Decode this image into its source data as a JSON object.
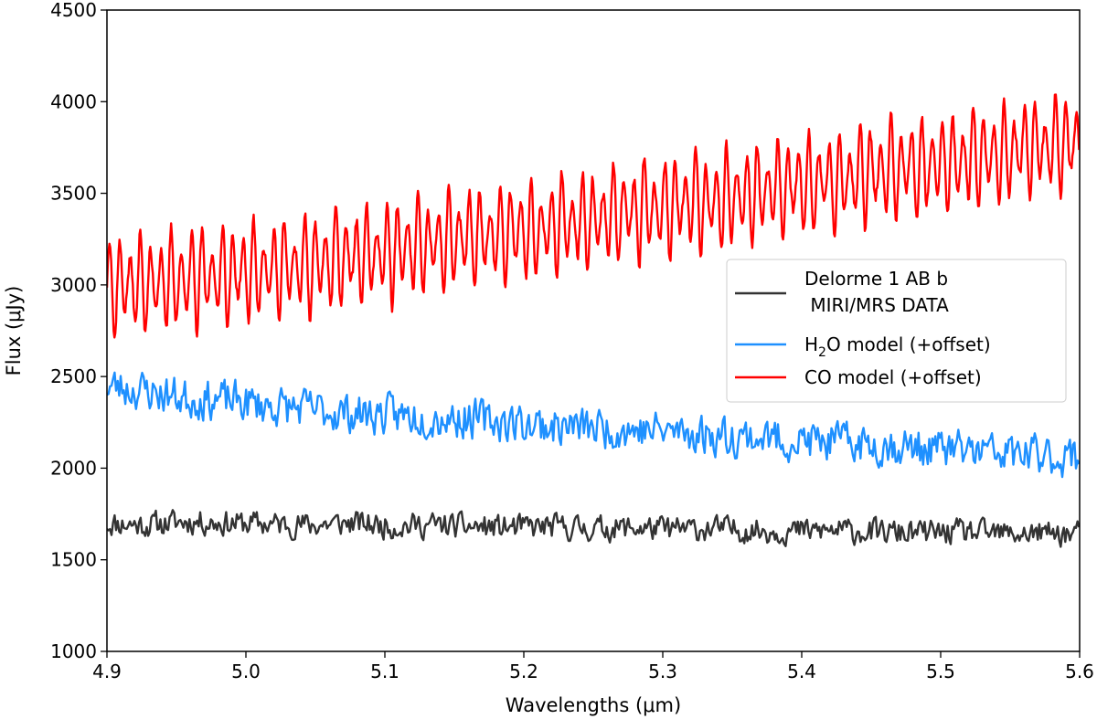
{
  "chart_data": {
    "type": "line",
    "xlabel": "Wavelengths (μm)",
    "ylabel": "Flux (μJy)",
    "xlim": [
      4.9,
      5.6
    ],
    "ylim": [
      1000,
      4500
    ],
    "x_ticks": [
      "4.9",
      "5.0",
      "5.1",
      "5.2",
      "5.3",
      "5.4",
      "5.5",
      "5.6"
    ],
    "y_ticks": [
      "1000",
      "1500",
      "2000",
      "2500",
      "3000",
      "3500",
      "4000",
      "4500"
    ],
    "legend": {
      "placement": "center-right",
      "entries": [
        {
          "line1": "Delorme 1 AB b",
          "line2": " MIRI/MRS DATA"
        },
        {
          "pre": "H",
          "sub": "2",
          "post": "O model (+offset)"
        },
        {
          "text": "CO model (+offset)"
        }
      ]
    },
    "series": [
      {
        "name": "Delorme 1 AB b MIRI/MRS DATA",
        "color": "#333333",
        "x_start": 4.9,
        "x_end": 5.6,
        "values": [
          1700,
          1690,
          1710,
          1700,
          1695,
          1690,
          1700,
          1685,
          1690,
          1680,
          1675,
          1680,
          1670,
          1675,
          1665,
          1670,
          1660,
          1655,
          1660,
          1650,
          1645,
          1650,
          1640,
          1645,
          1640
        ],
        "noise": 95,
        "seed": 11,
        "step": 0.0011
      },
      {
        "name": "H2O model (+offset)",
        "color": "#1e90ff",
        "x_start": 4.9,
        "x_end": 5.6,
        "values": [
          2450,
          2420,
          2380,
          2370,
          2340,
          2320,
          2300,
          2290,
          2280,
          2270,
          2250,
          2230,
          2220,
          2210,
          2200,
          2180,
          2170,
          2150,
          2140,
          2130,
          2110,
          2100,
          2080,
          2070,
          2060
        ],
        "noise": 150,
        "seed": 23,
        "step": 0.0011
      },
      {
        "name": "CO model (+offset)",
        "color": "#ff0000",
        "x_start": 4.9,
        "x_end": 5.6,
        "values": [
          3000,
          3010,
          3030,
          3060,
          3080,
          3110,
          3150,
          3180,
          3220,
          3260,
          3290,
          3320,
          3360,
          3390,
          3430,
          3460,
          3500,
          3540,
          3570,
          3610,
          3640,
          3680,
          3720,
          3750,
          3780
        ],
        "amplitude": 300,
        "period": 0.0074,
        "noise": 45,
        "seed": 37,
        "step": 0.0006
      }
    ]
  }
}
